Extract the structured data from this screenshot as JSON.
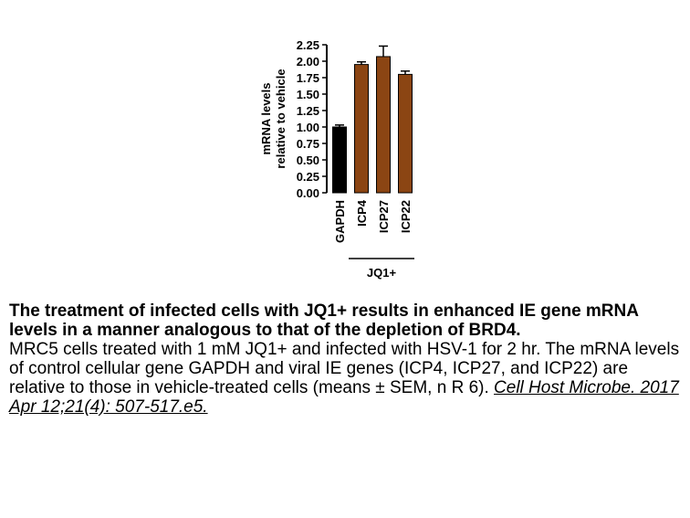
{
  "chart_data": {
    "type": "bar",
    "categories": [
      "GAPDH",
      "ICP4",
      "ICP27",
      "ICP22"
    ],
    "values": [
      1.0,
      1.95,
      2.07,
      1.8
    ],
    "errors": [
      0.03,
      0.04,
      0.16,
      0.05
    ],
    "bar_colors": [
      "#000000",
      "#8B4513",
      "#8B4513",
      "#8B4513"
    ],
    "ylabel_lines": [
      "mRNA levels",
      "relative to vehicle"
    ],
    "yticks": [
      "0.00",
      "0.25",
      "0.50",
      "0.75",
      "1.00",
      "1.25",
      "1.50",
      "1.75",
      "2.00",
      "2.25"
    ],
    "ylim": [
      0,
      2.25
    ],
    "group_label": "JQ1+",
    "grid": false
  },
  "caption": {
    "heading": "The treatment of infected cells with JQ1+ results in enhanced IE gene mRNA levels in a manner analogous to that of the depletion of BRD4.",
    "body": "MRC5 cells treated with 1 mM JQ1+ and infected with HSV-1 for 2 hr. The mRNA levels of control cellular gene GAPDH and viral IE genes (ICP4, ICP27, and ICP22) are relative to those in vehicle-treated cells (means ± SEM, n R 6).",
    "citation": "Cell Host Microbe. 2017 Apr 12;21(4): 507-517.e5."
  }
}
